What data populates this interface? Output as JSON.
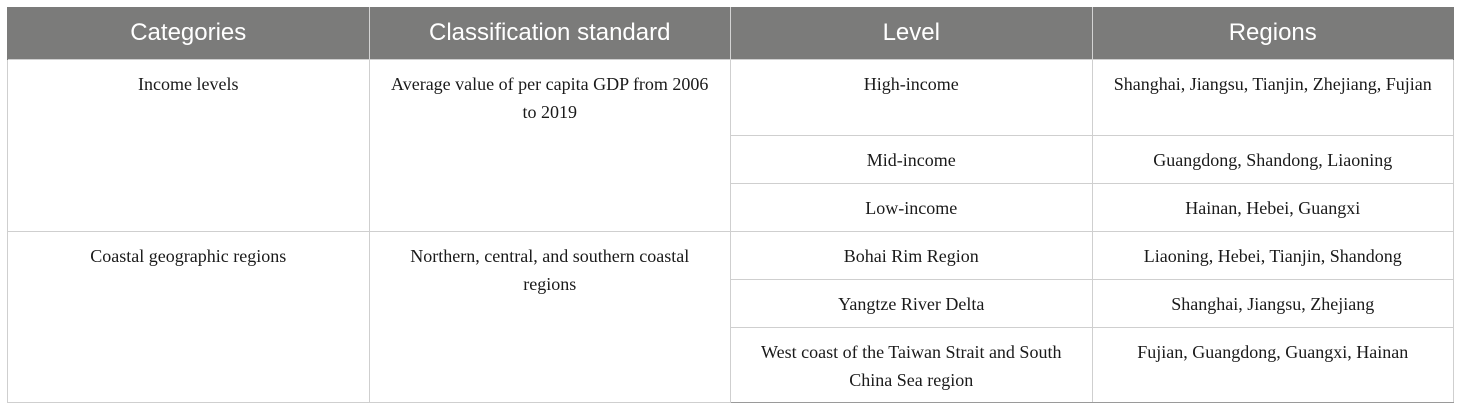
{
  "table": {
    "headers": [
      "Categories",
      "Classification standard",
      "Level",
      "Regions"
    ],
    "groups": [
      {
        "category": "Income levels",
        "standard": "Average value of per capita GDP from 2006 to 2019",
        "rows": [
          {
            "level": "High-income",
            "regions": "Shanghai, Jiangsu, Tianjin, Zhejiang, Fujian"
          },
          {
            "level": "Mid-income",
            "regions": "Guangdong, Shandong, Liaoning"
          },
          {
            "level": "Low-income",
            "regions": "Hainan, Hebei, Guangxi"
          }
        ]
      },
      {
        "category": "Coastal geographic regions",
        "standard": "Northern, central, and southern coastal regions",
        "rows": [
          {
            "level": "Bohai Rim Region",
            "regions": "Liaoning, Hebei, Tianjin, Shandong"
          },
          {
            "level": "Yangtze River Delta",
            "regions": "Shanghai, Jiangsu, Zhejiang"
          },
          {
            "level": "West coast of the Taiwan Strait and South China Sea region",
            "regions": "Fujian, Guangdong, Guangxi, Hainan"
          }
        ]
      }
    ]
  }
}
